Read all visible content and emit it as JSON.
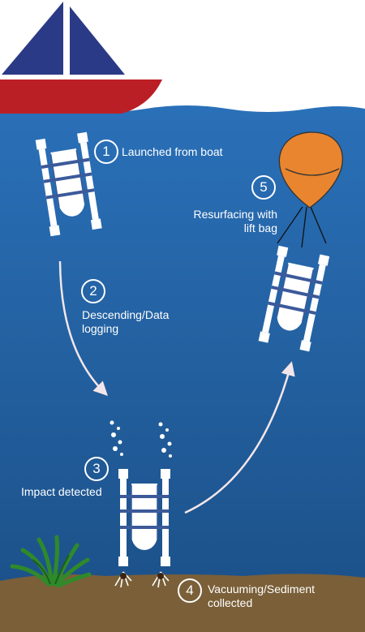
{
  "colors": {
    "sky": "#ffffff",
    "water_top": "#2a70b8",
    "water_bottom": "#1b4f86",
    "seabed": "#7a5f38",
    "sail": "#2b3a86",
    "hull": "#bb1f26",
    "balloon": "#e8852e",
    "device": "#ffffff",
    "strap": "#3c5a9a",
    "arrow": "#f3e6ea",
    "seaweed": "#2f8a2a"
  },
  "steps": [
    {
      "number": "1",
      "label": "Launched from boat"
    },
    {
      "number": "2",
      "label": "Descending/Data\nlogging"
    },
    {
      "number": "3",
      "label": "Impact detected"
    },
    {
      "number": "4",
      "label": "Vacuuming/Sediment\ncollected"
    },
    {
      "number": "5",
      "label": "Resurfacing with\nlift bag"
    }
  ]
}
